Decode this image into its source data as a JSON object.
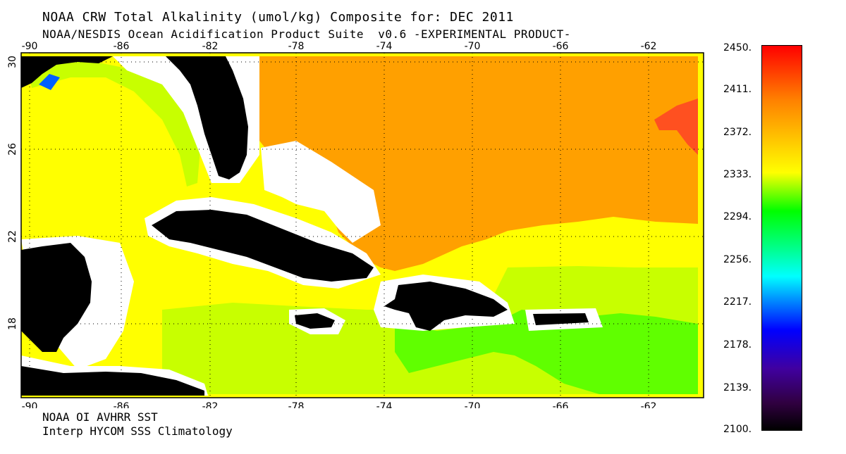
{
  "header": {
    "title": "NOAA CRW Total Alkalinity (umol/kg) Composite for: DEC 2011",
    "subtitle": "NOAA/NESDIS Ocean Acidification Product Suite  v0.6 -EXPERIMENTAL PRODUCT-"
  },
  "footer": {
    "line1": "NOAA OI AVHRR SST",
    "line2": "Interp HYCOM SSS Climatology"
  },
  "axes": {
    "lon_ticks": [
      "-90",
      "-86",
      "-82",
      "-78",
      "-74",
      "-70",
      "-66",
      "-62"
    ],
    "lat_ticks": [
      "30",
      "26",
      "22",
      "18"
    ]
  },
  "colorbar": {
    "labels": [
      "2450.",
      "2411.",
      "2372.",
      "2333.",
      "2294.",
      "2256.",
      "2217.",
      "2178.",
      "2139.",
      "2100."
    ],
    "colors": [
      "#ff0000",
      "#ff8000",
      "#ffff00",
      "#00ff00",
      "#00ffff",
      "#0000ff",
      "#000000"
    ]
  },
  "map_colors": {
    "orange_high": "#ffa000",
    "red_orange": "#ff5020",
    "yellow": "#ffff00",
    "yellow_green": "#c8ff00",
    "green": "#60ff00",
    "land": "#000000",
    "no_data": "#ffffff"
  }
}
